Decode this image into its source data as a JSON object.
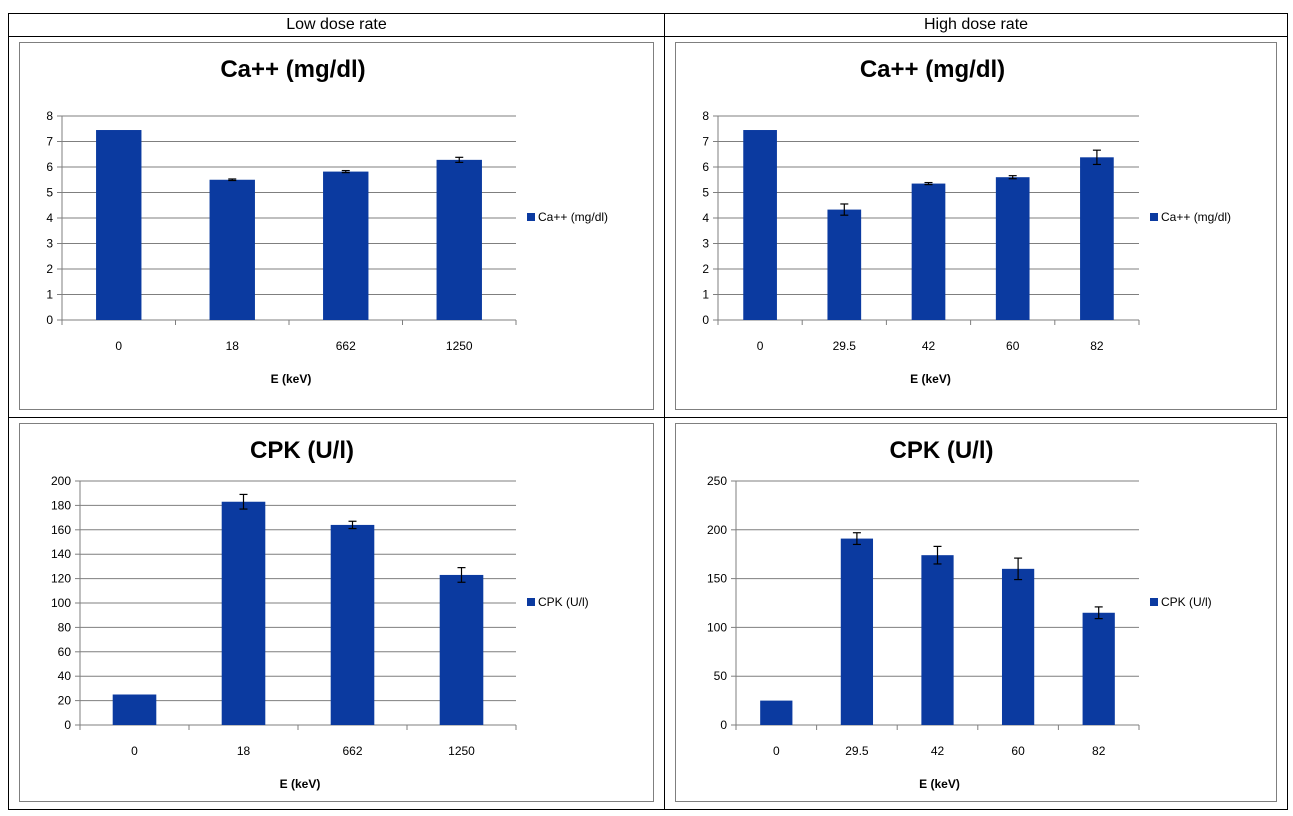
{
  "columns": [
    "Low dose rate",
    "High dose rate"
  ],
  "chart_data": [
    {
      "type": "bar",
      "title": "Ca++ (mg/dl)",
      "xlabel": "E (keV)",
      "ylabel": "",
      "categories": [
        "0",
        "18",
        "662",
        "1250"
      ],
      "series": [
        {
          "name": "Ca++ (mg/dl)",
          "values": [
            7.45,
            5.5,
            5.82,
            6.28
          ],
          "errors": [
            0,
            0.03,
            0.04,
            0.1
          ]
        }
      ],
      "ylim": [
        0,
        8
      ],
      "yticks": [
        0,
        1,
        2,
        3,
        4,
        5,
        6,
        7,
        8
      ],
      "grid": true,
      "legend": "right",
      "color": "#0b3aa0"
    },
    {
      "type": "bar",
      "title": "Ca++ (mg/dl)",
      "xlabel": "E (keV)",
      "ylabel": "",
      "categories": [
        "0",
        "29.5",
        "42",
        "60",
        "82"
      ],
      "series": [
        {
          "name": "Ca++ (mg/dl)",
          "values": [
            7.45,
            4.33,
            5.35,
            5.6,
            6.38
          ],
          "errors": [
            0,
            0.22,
            0.04,
            0.06,
            0.28
          ]
        }
      ],
      "ylim": [
        0,
        8
      ],
      "yticks": [
        0,
        1,
        2,
        3,
        4,
        5,
        6,
        7,
        8
      ],
      "grid": true,
      "legend": "right",
      "color": "#0b3aa0"
    },
    {
      "type": "bar",
      "title": "CPK (U/l)",
      "xlabel": "E (keV)",
      "ylabel": "",
      "categories": [
        "0",
        "18",
        "662",
        "1250"
      ],
      "series": [
        {
          "name": "CPK (U/l)",
          "values": [
            25,
            183,
            164,
            123
          ],
          "errors": [
            0,
            6,
            3,
            6
          ]
        }
      ],
      "ylim": [
        0,
        200
      ],
      "yticks": [
        0,
        20,
        40,
        60,
        80,
        100,
        120,
        140,
        160,
        180,
        200
      ],
      "grid": true,
      "legend": "right",
      "color": "#0b3aa0"
    },
    {
      "type": "bar",
      "title": "CPK (U/l)",
      "xlabel": "E (keV)",
      "ylabel": "",
      "categories": [
        "0",
        "29.5",
        "42",
        "60",
        "82"
      ],
      "series": [
        {
          "name": "CPK (U/l)",
          "values": [
            25,
            191,
            174,
            160,
            115
          ],
          "errors": [
            0,
            6,
            9,
            11,
            6
          ]
        }
      ],
      "ylim": [
        0,
        250
      ],
      "yticks": [
        0,
        50,
        100,
        150,
        200,
        250
      ],
      "grid": true,
      "legend": "right",
      "color": "#0b3aa0"
    }
  ]
}
